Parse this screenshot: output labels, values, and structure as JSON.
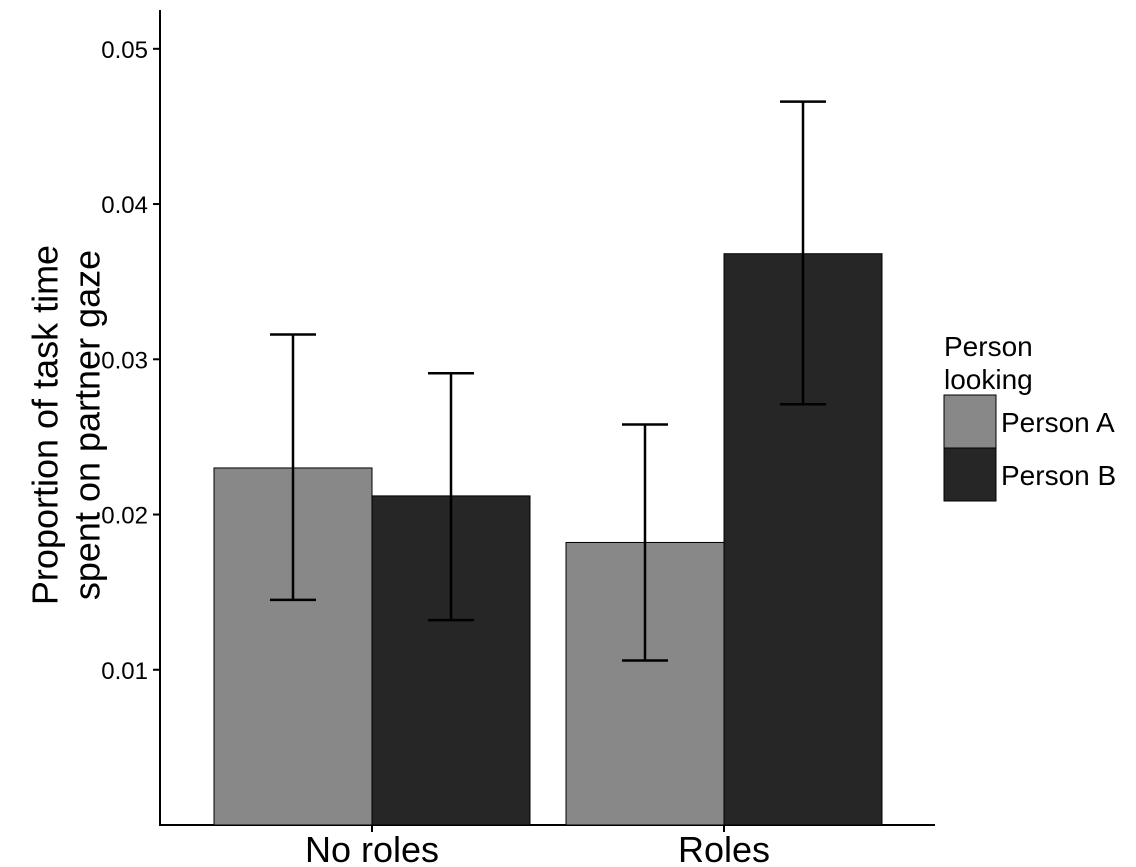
{
  "chart_data": {
    "type": "bar",
    "categories": [
      "No roles",
      "Roles"
    ],
    "series": [
      {
        "name": "Person A",
        "color": "#888888",
        "values": [
          0.023,
          0.0182
        ],
        "error_low": [
          0.0145,
          0.0106
        ],
        "error_high": [
          0.0316,
          0.0258
        ]
      },
      {
        "name": "Person B",
        "color": "#262626",
        "values": [
          0.0212,
          0.0368
        ],
        "error_low": [
          0.0132,
          0.0271
        ],
        "error_high": [
          0.0291,
          0.0466
        ]
      }
    ],
    "ylabel_lines": [
      "Proportion of task time",
      "spent on partner gaze"
    ],
    "xlabel": "",
    "title": "",
    "yticks": [
      0.01,
      0.02,
      0.03,
      0.04,
      0.05
    ],
    "ytick_labels": [
      "0.01",
      "0.02",
      "0.03",
      "0.04",
      "0.05"
    ],
    "ylim": [
      0.0,
      0.0525
    ],
    "grid": false,
    "legend": {
      "title_lines": [
        "Person",
        "looking"
      ],
      "placement": "right"
    }
  }
}
